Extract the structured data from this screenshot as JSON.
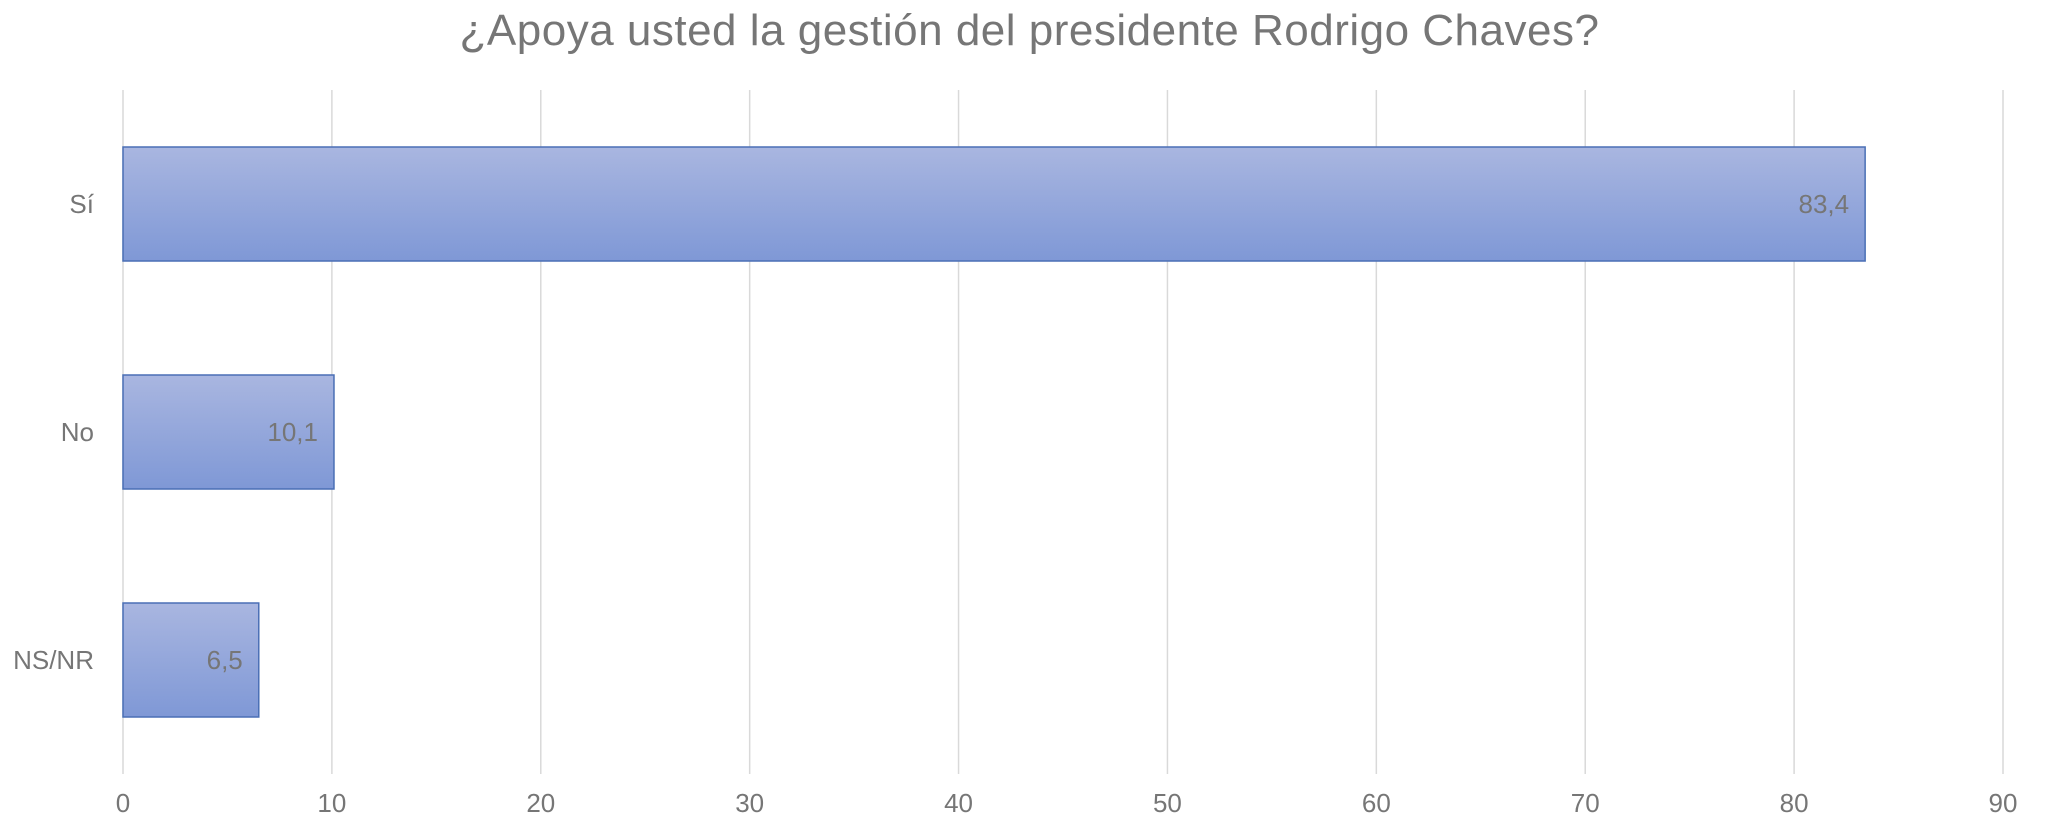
{
  "chart_data": {
    "type": "bar",
    "orientation": "horizontal",
    "title": "¿Apoya usted la gestión del presidente Rodrigo Chaves?",
    "xlabel": "",
    "ylabel": "",
    "categories": [
      "Sí",
      "No",
      "NS/NR"
    ],
    "values": [
      83.4,
      10.1,
      6.5
    ],
    "data_labels": [
      "83,4",
      "10,1",
      "6,5"
    ],
    "xlim": [
      0,
      90
    ],
    "x_ticks": [
      0,
      10,
      20,
      30,
      40,
      50,
      60,
      70,
      80,
      90
    ],
    "grid": true,
    "legend": "none",
    "colors": {
      "bar_top": "#a9b6e0",
      "bar_bottom": "#7f98d6",
      "bar_border": "#4a6fb5",
      "grid": "#d9d9d9",
      "text": "#767676"
    }
  }
}
